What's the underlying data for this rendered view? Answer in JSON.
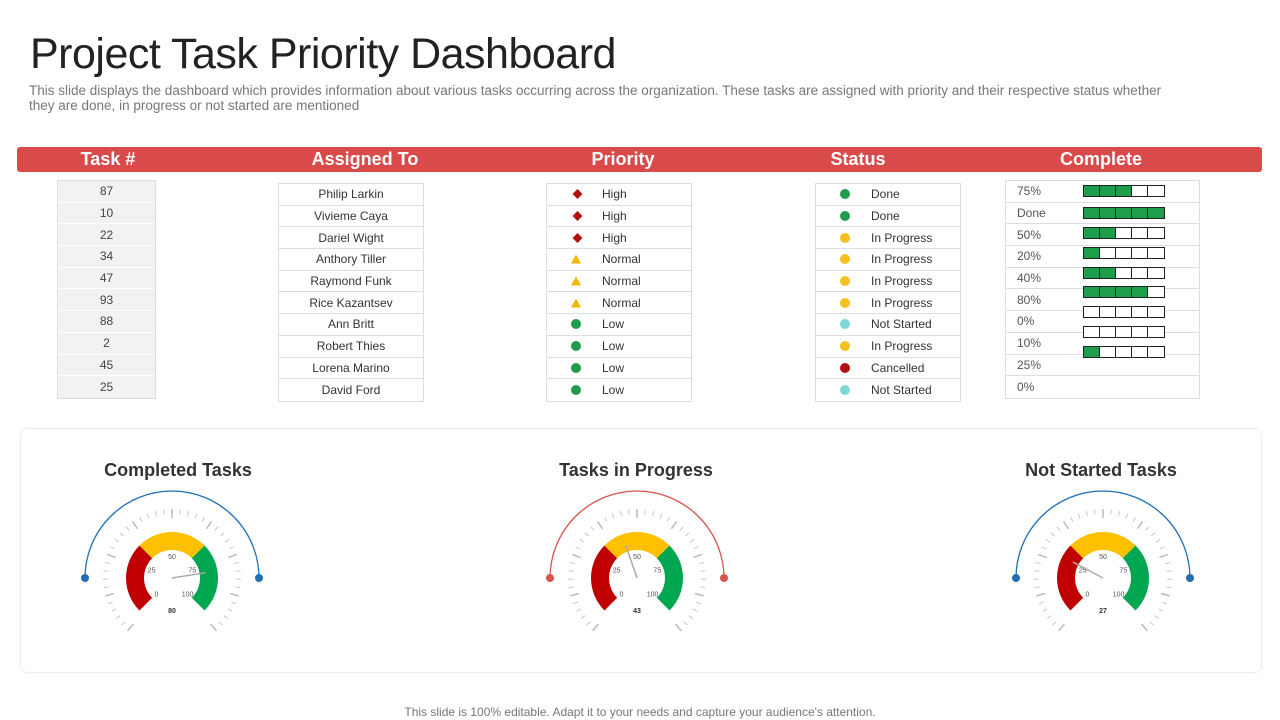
{
  "title": "Project Task Priority Dashboard",
  "subtitle": "This slide displays the dashboard which provides information about various tasks occurring across the organization. These tasks are assigned with priority and their respective status whether they are done, in progress or not started are mentioned",
  "headers": [
    "Task #",
    "Assigned To",
    "Priority",
    "Status",
    "Complete"
  ],
  "colors": {
    "header": "#d94a4a",
    "high": "#b01010",
    "normal": "#f5b800",
    "low": "#1e9e4a",
    "done": "#1e9e4a",
    "in_progress": "#f5c020",
    "not_started": "#7fd8d8",
    "cancelled": "#b01010",
    "bar_fill": "#1e9e4a"
  },
  "rows": [
    {
      "task": "87",
      "assigned": "Philip Larkin",
      "priority": "High",
      "status": "Done",
      "complete": "75%",
      "segments_filled": 3
    },
    {
      "task": "10",
      "assigned": "Vivieme Caya",
      "priority": "High",
      "status": "Done",
      "complete": "Done",
      "segments_filled": 5
    },
    {
      "task": "22",
      "assigned": "Dariel Wight",
      "priority": "High",
      "status": "In Progress",
      "complete": "50%",
      "segments_filled": 2
    },
    {
      "task": "34",
      "assigned": "Anthory Tiller",
      "priority": "Normal",
      "status": "In Progress",
      "complete": "20%",
      "segments_filled": 1
    },
    {
      "task": "47",
      "assigned": "Raymond Funk",
      "priority": "Normal",
      "status": "In Progress",
      "complete": "40%",
      "segments_filled": 2
    },
    {
      "task": "93",
      "assigned": "Rice Kazantsev",
      "priority": "Normal",
      "status": "In Progress",
      "complete": "80%",
      "segments_filled": 4
    },
    {
      "task": "88",
      "assigned": "Ann Britt",
      "priority": "Low",
      "status": "Not Started",
      "complete": "0%",
      "segments_filled": 0
    },
    {
      "task": "2",
      "assigned": "Robert Thies",
      "priority": "Low",
      "status": "In Progress",
      "complete": "10%",
      "segments_filled": 0
    },
    {
      "task": "45",
      "assigned": "Lorena Marino",
      "priority": "Low",
      "status": "Cancelled",
      "complete": "25%",
      "segments_filled": 1
    },
    {
      "task": "25",
      "assigned": "David Ford",
      "priority": "Low",
      "status": "Not Started",
      "complete": "0%",
      "segments_filled": 0
    }
  ],
  "gauges": [
    {
      "title": "Completed Tasks",
      "value": "80",
      "arc_color": "#1f6fb5"
    },
    {
      "title": "Tasks in Progress",
      "value": "43",
      "arc_color": "#d9534f"
    },
    {
      "title": "Not Started Tasks",
      "value": "27",
      "arc_color": "#1f6fb5"
    }
  ],
  "gauge_ticks": [
    "0",
    "25",
    "50",
    "75",
    "100"
  ],
  "footer": "This slide is 100% editable. Adapt it to your needs and capture your audience's attention."
}
